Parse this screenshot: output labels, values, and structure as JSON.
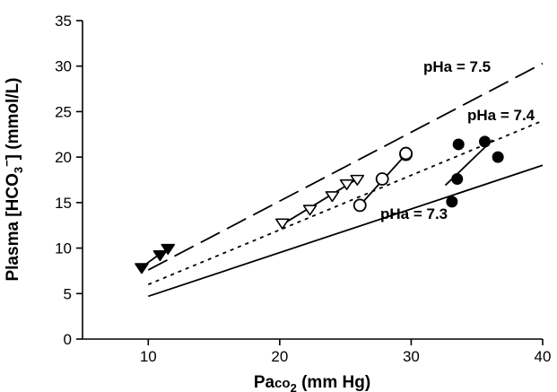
{
  "chart_data": {
    "type": "scatter",
    "title": "",
    "xlabel": {
      "prefix": "Pa",
      "smallcaps": "co",
      "sub": "2",
      "suffix": " (mm Hg)"
    },
    "ylabel": {
      "prefix": "Plasma [HCO",
      "sub": "3",
      "sup": "−",
      "suffix": "] (mmol/L)"
    },
    "xlim": [
      5,
      40
    ],
    "ylim": [
      0,
      35
    ],
    "x_ticks": [
      10,
      20,
      30,
      40
    ],
    "y_ticks": [
      0,
      5,
      10,
      15,
      20,
      25,
      30,
      35
    ],
    "grid": false,
    "isopleths": [
      {
        "label": "pHa = 7.5",
        "style": "long-dash",
        "x": [
          10,
          40
        ],
        "y": [
          7.6,
          30.3
        ]
      },
      {
        "label": "pHa = 7.4",
        "style": "dotted",
        "x": [
          10,
          40
        ],
        "y": [
          6.0,
          24.0
        ]
      },
      {
        "label": "pHa = 7.3",
        "style": "solid",
        "x": [
          10,
          40
        ],
        "y": [
          4.7,
          19.1
        ]
      }
    ],
    "series": [
      {
        "marker": "filled-triangle-down",
        "x": [
          9.5,
          10.9,
          11.5
        ],
        "y": [
          7.9,
          9.3,
          10.0
        ],
        "fit": {
          "x": [
            9.5,
            11.5
          ],
          "y": [
            7.9,
            10.0
          ]
        }
      },
      {
        "marker": "open-triangle-down",
        "x": [
          20.2,
          22.3,
          24.0,
          25.1,
          25.9
        ],
        "y": [
          12.8,
          14.3,
          15.8,
          17.1,
          17.6
        ],
        "fit": {
          "x": [
            20.2,
            25.9
          ],
          "y": [
            12.6,
            17.6
          ]
        }
      },
      {
        "marker": "open-circle",
        "x": [
          26.1,
          27.8,
          29.6,
          29.6
        ],
        "y": [
          14.7,
          17.6,
          20.3,
          20.4
        ],
        "fit": {
          "x": [
            26.1,
            29.6
          ],
          "y": [
            14.7,
            20.3
          ]
        }
      },
      {
        "marker": "filled-circle",
        "x": [
          33.1,
          33.5,
          33.6,
          35.6,
          36.6
        ],
        "y": [
          15.1,
          17.6,
          21.4,
          21.7,
          20.0
        ],
        "fit": {
          "x": [
            32.6,
            36.2
          ],
          "y": [
            16.9,
            21.9
          ]
        }
      }
    ]
  }
}
